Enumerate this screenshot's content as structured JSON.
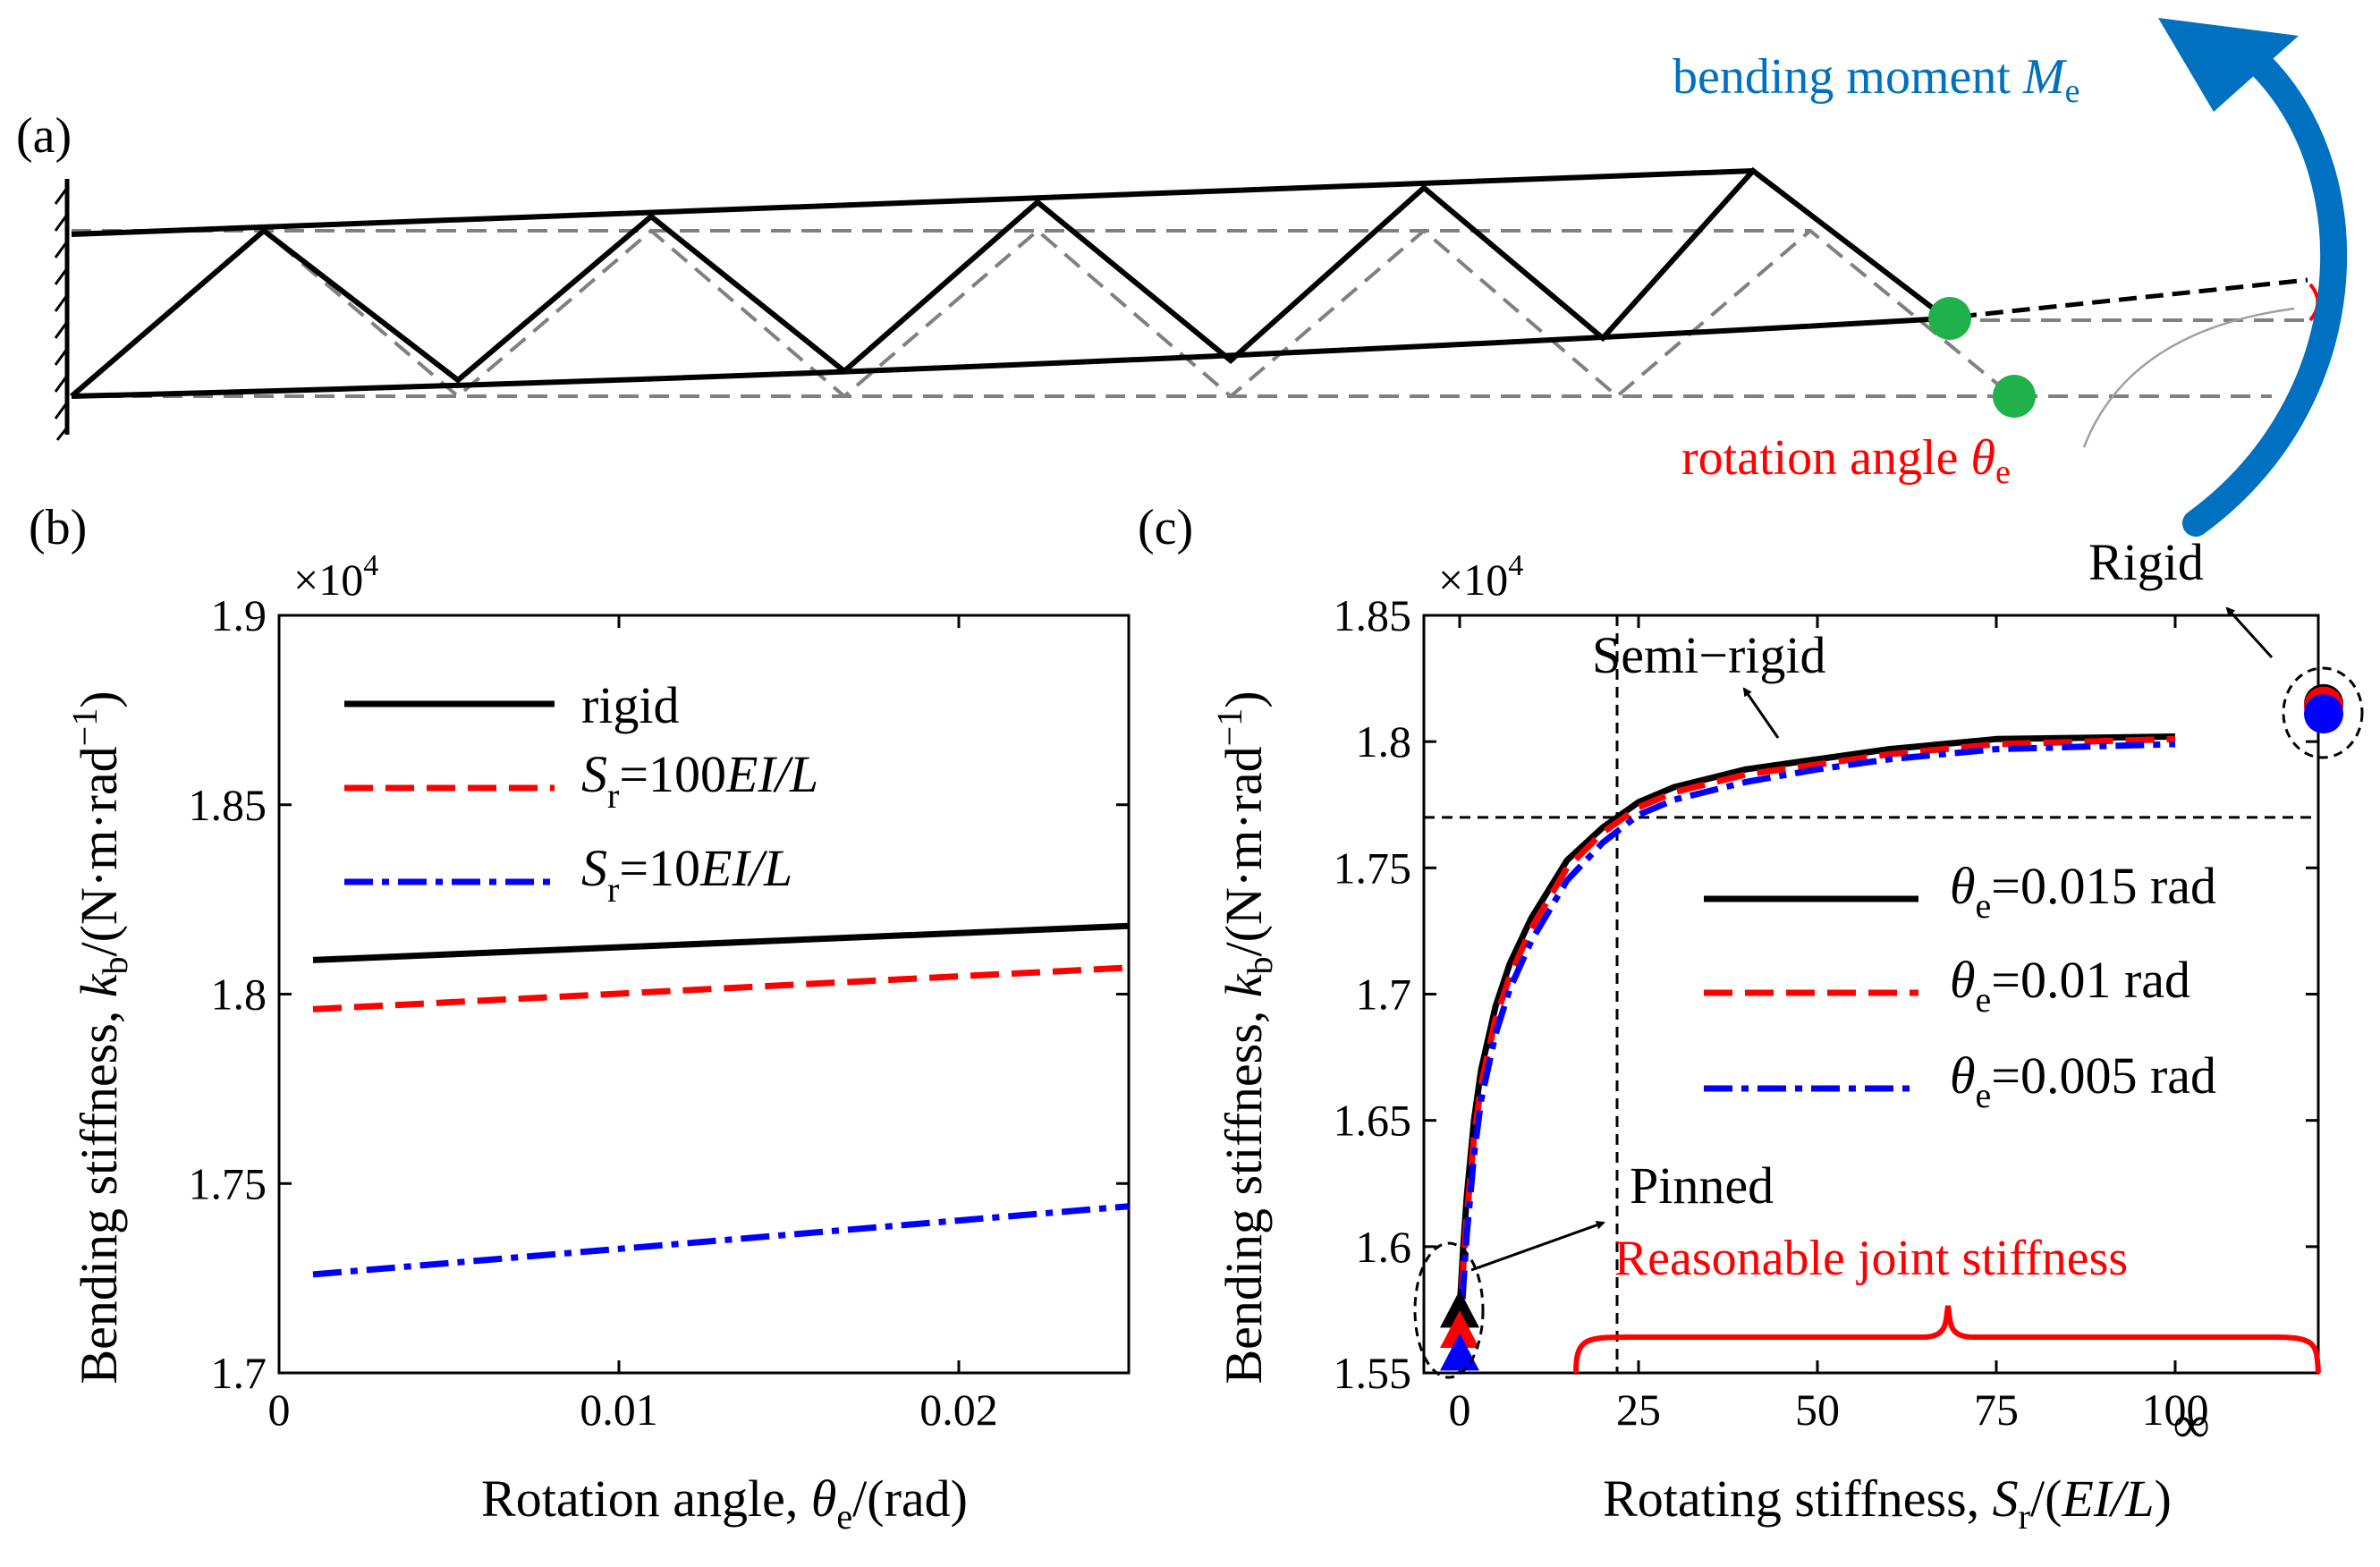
{
  "panel_a": {
    "label": "(a)",
    "moment_label": "bending moment ",
    "moment_symbol": "M",
    "moment_sub": "e",
    "angle_label": "rotation angle ",
    "angle_symbol": "θ",
    "angle_sub": "e",
    "colors": {
      "moment": "#0070c0",
      "angle": "#ff0000",
      "node": "#1fb24a",
      "undeformed": "#808080"
    }
  },
  "panel_b": {
    "label": "(b)",
    "exponent": "×10",
    "exponent_power": "4",
    "ylabel_pre": "Bending stiffness, ",
    "ylabel_sym": "k",
    "ylabel_sub": "b",
    "ylabel_post": "/(N·m·rad",
    "ylabel_sup": "−1",
    "ylabel_end": ")",
    "xlabel_pre": "Rotation angle, ",
    "xlabel_sym": "θ",
    "xlabel_sub": "e",
    "xlabel_post": "/(rad)",
    "legend": {
      "rigid": "rigid",
      "s100_sym": "S",
      "s100_sub": "r",
      "s100_eq": "=100",
      "s100_val": "EI/L",
      "s10_sym": "S",
      "s10_sub": "r",
      "s10_eq": "=10",
      "s10_val": "EI/L"
    }
  },
  "panel_c": {
    "label": "(c)",
    "exponent": "×10",
    "exponent_power": "4",
    "ylabel_pre": "Bending stiffness, ",
    "ylabel_sym": "k",
    "ylabel_sub": "b",
    "ylabel_post": "/(N·m·rad",
    "ylabel_sup": "−1",
    "ylabel_end": ")",
    "xlabel_pre": "Rotating stiffness, ",
    "xlabel_sym": "S",
    "xlabel_sub": "r",
    "xlabel_post": "/(",
    "xlabel_val": "EI/L",
    "xlabel_end": ")",
    "infinity": "∞",
    "semi_rigid": "Semi−rigid",
    "pinned": "Pinned",
    "rigid": "Rigid",
    "reasonable": "Reasonable joint stiffness",
    "legend": {
      "l1_sym": "θ",
      "l1_sub": "e",
      "l1_val": "=0.015 rad",
      "l2_sym": "θ",
      "l2_sub": "e",
      "l2_val": "=0.01 rad",
      "l3_sym": "θ",
      "l3_sub": "e",
      "l3_val": "=0.005 rad"
    }
  },
  "chart_data": [
    {
      "type": "line",
      "title": "(b)",
      "xlabel": "Rotation angle, θe/(rad)",
      "ylabel": "Bending stiffness, kb/(N·m·rad−1)",
      "y_multiplier": "×10^4",
      "xlim": [
        0,
        0.025
      ],
      "ylim": [
        1.7,
        1.9
      ],
      "xticks": [
        0,
        0.01,
        0.02
      ],
      "xtick_labels": [
        "0",
        "0.01",
        "0.02"
      ],
      "yticks": [
        1.7,
        1.75,
        1.8,
        1.85,
        1.9
      ],
      "ytick_labels": [
        "1.7",
        "1.75",
        "1.8",
        "1.85",
        "1.9"
      ],
      "legend_position": "top-left",
      "series": [
        {
          "name": "rigid",
          "color": "#000000",
          "style": "solid",
          "x": [
            0.001,
            0.025
          ],
          "values": [
            1.809,
            1.818
          ]
        },
        {
          "name": "Sr=100EI/L",
          "color": "#ff0000",
          "style": "dashed",
          "x": [
            0.001,
            0.025
          ],
          "values": [
            1.796,
            1.807
          ]
        },
        {
          "name": "Sr=10EI/L",
          "color": "#0000ff",
          "style": "dashdot",
          "x": [
            0.001,
            0.025
          ],
          "values": [
            1.726,
            1.744
          ]
        }
      ]
    },
    {
      "type": "line",
      "title": "(c)",
      "xlabel": "Rotating stiffness, Sr/(EI/L)",
      "ylabel": "Bending stiffness, kb/(N·m·rad−1)",
      "y_multiplier": "×10^4",
      "xlim": [
        -5,
        120
      ],
      "ylim": [
        1.55,
        1.85
      ],
      "xticks": [
        0,
        25,
        50,
        75,
        100
      ],
      "xtick_labels": [
        "0",
        "25",
        "50",
        "75",
        "100"
      ],
      "yticks": [
        1.55,
        1.6,
        1.65,
        1.7,
        1.75,
        1.8,
        1.85
      ],
      "ytick_labels": [
        "1.55",
        "1.6",
        "1.65",
        "1.7",
        "1.75",
        "1.8",
        "1.85"
      ],
      "reference_lines": {
        "vertical_x": 22,
        "horizontal_y": 1.77
      },
      "legend_position": "center-right",
      "series": [
        {
          "name": "θe=0.015 rad",
          "color": "#000000",
          "style": "solid",
          "x": [
            0,
            0.5,
            1,
            2,
            3,
            5,
            7,
            10,
            15,
            20,
            25,
            30,
            40,
            50,
            60,
            75,
            100
          ],
          "values": [
            1.575,
            1.6,
            1.62,
            1.65,
            1.67,
            1.695,
            1.712,
            1.73,
            1.753,
            1.766,
            1.776,
            1.782,
            1.789,
            1.793,
            1.797,
            1.801,
            1.802
          ]
        },
        {
          "name": "θe=0.01 rad",
          "color": "#ff0000",
          "style": "dashed",
          "x": [
            0,
            0.5,
            1,
            2,
            3,
            5,
            7,
            10,
            15,
            20,
            25,
            30,
            40,
            50,
            60,
            75,
            100
          ],
          "values": [
            1.567,
            1.592,
            1.612,
            1.643,
            1.664,
            1.69,
            1.707,
            1.726,
            1.75,
            1.764,
            1.774,
            1.78,
            1.787,
            1.791,
            1.795,
            1.799,
            1.801
          ]
        },
        {
          "name": "θe=0.005 rad",
          "color": "#0000ff",
          "style": "dashdot",
          "x": [
            0,
            0.5,
            1,
            2,
            3,
            5,
            7,
            10,
            15,
            20,
            25,
            30,
            40,
            50,
            60,
            75,
            100
          ],
          "values": [
            1.558,
            1.584,
            1.605,
            1.636,
            1.658,
            1.684,
            1.702,
            1.721,
            1.745,
            1.76,
            1.771,
            1.777,
            1.784,
            1.789,
            1.793,
            1.797,
            1.799
          ]
        }
      ],
      "pinned_markers": [
        {
          "name": "θe=0.015 rad",
          "x": 0,
          "value": 1.575,
          "color": "#000000"
        },
        {
          "name": "θe=0.01 rad",
          "x": 0,
          "value": 1.567,
          "color": "#ff0000"
        },
        {
          "name": "θe=0.005 rad",
          "x": 0,
          "value": 1.558,
          "color": "#0000ff"
        }
      ],
      "rigid_markers": [
        {
          "name": "θe=0.015 rad",
          "x": "∞",
          "value": 1.815,
          "color": "#000000"
        },
        {
          "name": "θe=0.01 rad",
          "x": "∞",
          "value": 1.814,
          "color": "#ff0000"
        },
        {
          "name": "θe=0.005 rad",
          "x": "∞",
          "value": 1.811,
          "color": "#0000ff"
        }
      ]
    }
  ]
}
